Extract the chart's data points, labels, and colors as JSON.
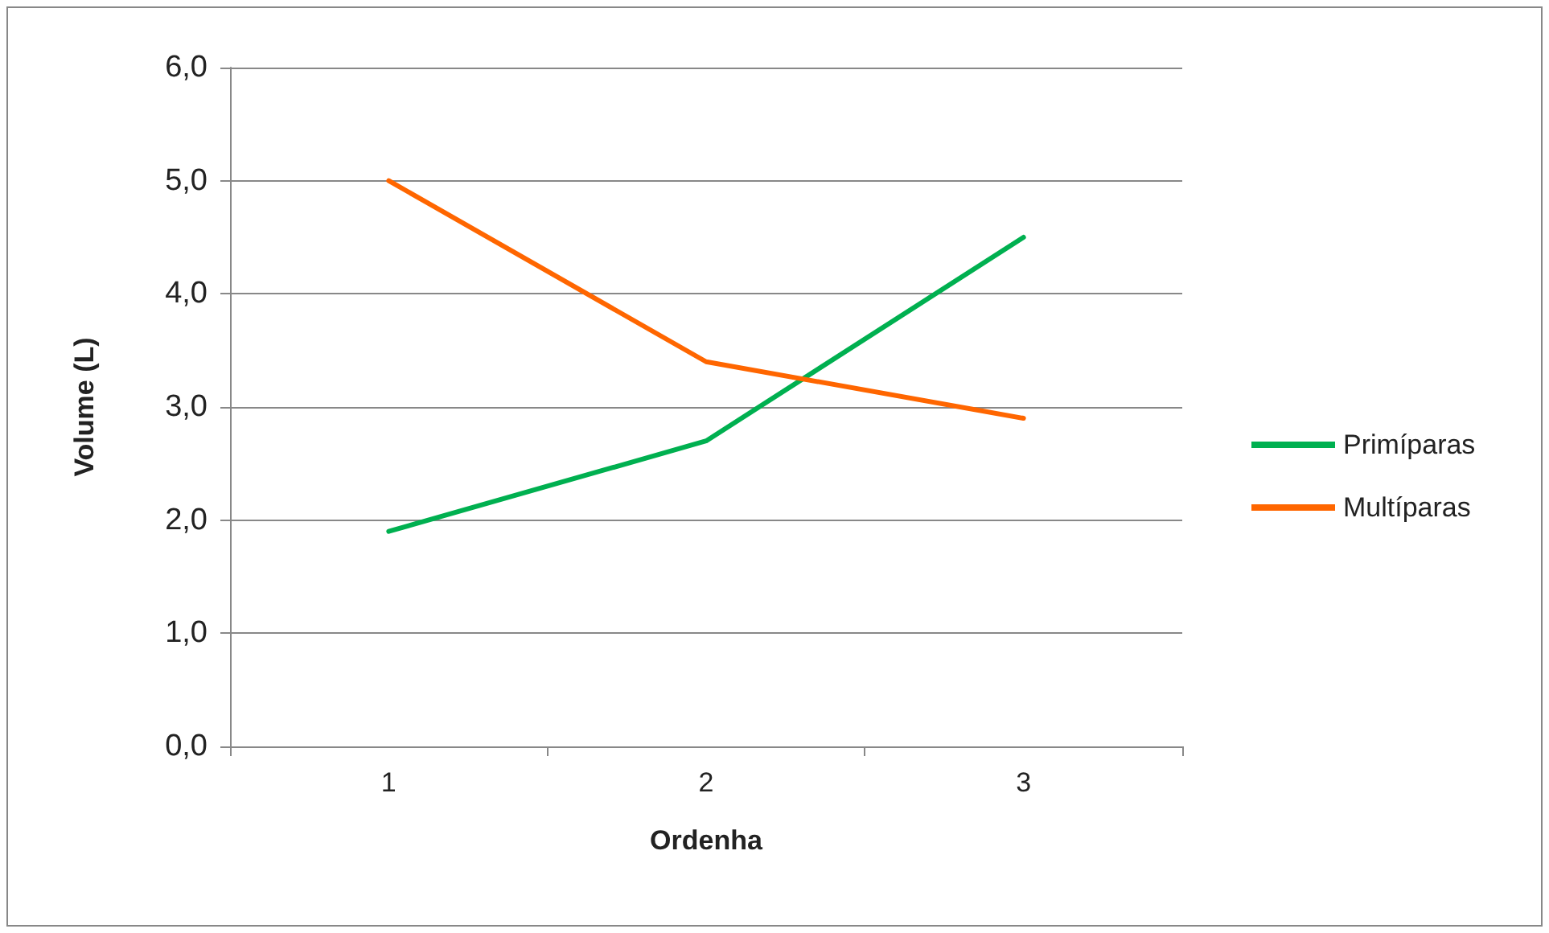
{
  "chart_data": {
    "type": "line",
    "xlabel": "Ordenha",
    "ylabel": "Volume (L)",
    "categories": [
      "1",
      "2",
      "3"
    ],
    "series": [
      {
        "name": "Primíparas",
        "color": "#00b050",
        "values": [
          1.9,
          2.7,
          4.5
        ]
      },
      {
        "name": "Multíparas",
        "color": "#ff6600",
        "values": [
          5.0,
          3.4,
          2.9
        ]
      }
    ],
    "ylim": [
      0,
      6
    ],
    "yticks": [
      {
        "value": 0,
        "label": "0,0"
      },
      {
        "value": 1,
        "label": "1,0"
      },
      {
        "value": 2,
        "label": "2,0"
      },
      {
        "value": 3,
        "label": "3,0"
      },
      {
        "value": 4,
        "label": "4,0"
      },
      {
        "value": 5,
        "label": "5,0"
      },
      {
        "value": 6,
        "label": "6,0"
      }
    ],
    "grid": "y",
    "legend": "right",
    "marker": "none",
    "line_style": "solid"
  }
}
